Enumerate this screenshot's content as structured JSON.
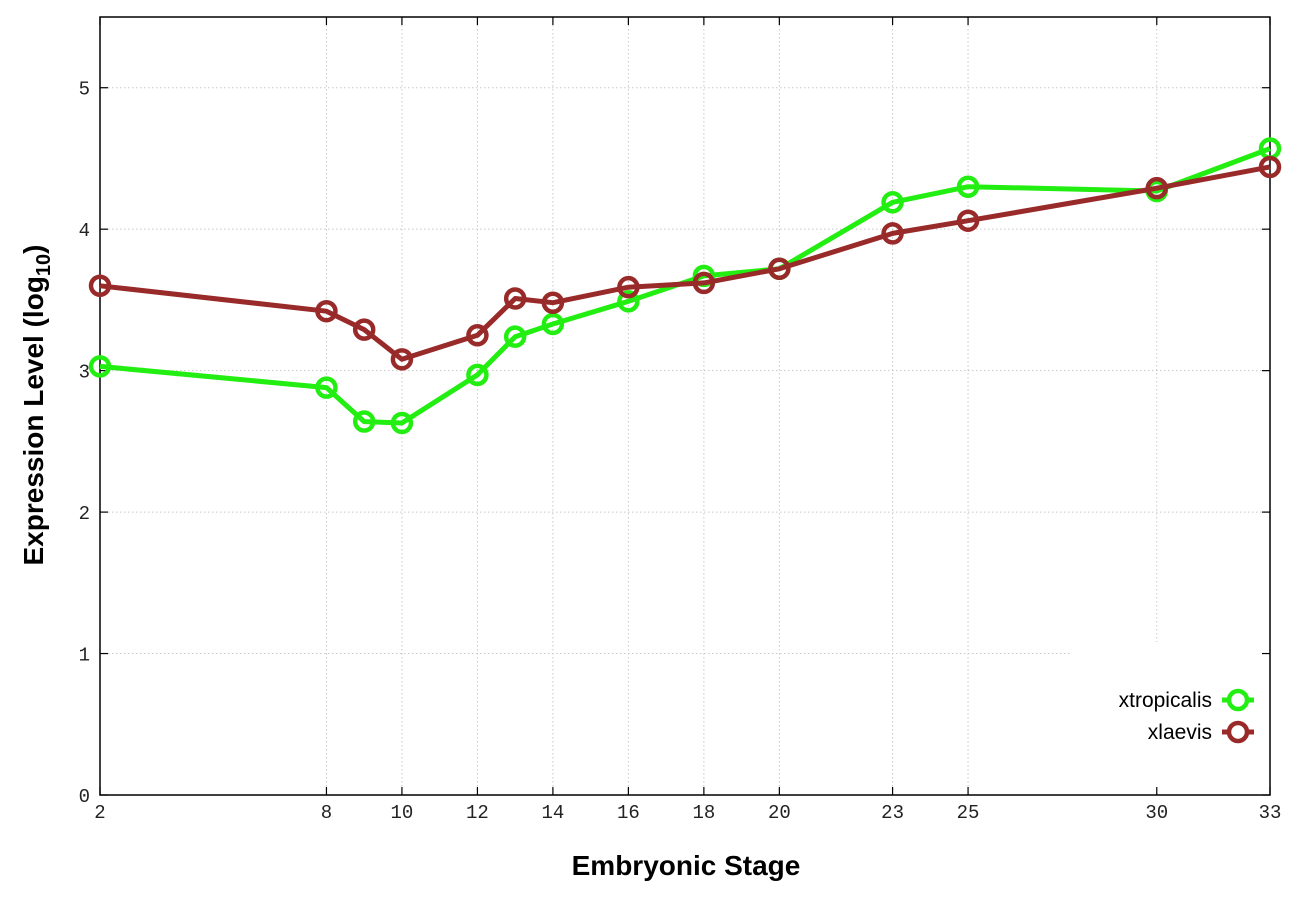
{
  "chart_data": {
    "type": "line",
    "xlabel": "Embryonic Stage",
    "ylabel": "Expression Level (log",
    "ylabel_sub": "10",
    "ylabel_close": ")",
    "x_ticks": [
      2,
      8,
      10,
      12,
      14,
      16,
      18,
      20,
      23,
      25,
      30,
      33
    ],
    "x_tick_labels": [
      "2",
      "8",
      "10",
      "12",
      "14",
      "16",
      "18",
      "20",
      "23",
      "25",
      "30",
      "33"
    ],
    "y_ticks": [
      0,
      1,
      2,
      3,
      4,
      5
    ],
    "y_tick_labels": [
      "0",
      "1",
      "2",
      "3",
      "4",
      "5"
    ],
    "ylim": [
      0,
      5.5
    ],
    "xlim": [
      2,
      33
    ],
    "grid": true,
    "legend_position": "bottom-right",
    "series": [
      {
        "name": "xtropicalis",
        "color": "#22ee11",
        "points": [
          {
            "x": 2,
            "y": 3.03
          },
          {
            "x": 8,
            "y": 2.88
          },
          {
            "x": 9,
            "y": 2.64
          },
          {
            "x": 10,
            "y": 2.63
          },
          {
            "x": 12,
            "y": 2.97
          },
          {
            "x": 13,
            "y": 3.24
          },
          {
            "x": 14,
            "y": 3.33
          },
          {
            "x": 16,
            "y": 3.49
          },
          {
            "x": 18,
            "y": 3.67
          },
          {
            "x": 20,
            "y": 3.72
          },
          {
            "x": 23,
            "y": 4.19
          },
          {
            "x": 25,
            "y": 4.3
          },
          {
            "x": 30,
            "y": 4.27
          },
          {
            "x": 33,
            "y": 4.57
          }
        ]
      },
      {
        "name": "xlaevis",
        "color": "#992a2a",
        "points": [
          {
            "x": 2,
            "y": 3.6
          },
          {
            "x": 8,
            "y": 3.42
          },
          {
            "x": 9,
            "y": 3.29
          },
          {
            "x": 10,
            "y": 3.08
          },
          {
            "x": 12,
            "y": 3.25
          },
          {
            "x": 13,
            "y": 3.51
          },
          {
            "x": 14,
            "y": 3.48
          },
          {
            "x": 16,
            "y": 3.59
          },
          {
            "x": 18,
            "y": 3.62
          },
          {
            "x": 20,
            "y": 3.72
          },
          {
            "x": 23,
            "y": 3.97
          },
          {
            "x": 25,
            "y": 4.06
          },
          {
            "x": 30,
            "y": 4.29
          },
          {
            "x": 33,
            "y": 4.44
          }
        ]
      }
    ]
  }
}
